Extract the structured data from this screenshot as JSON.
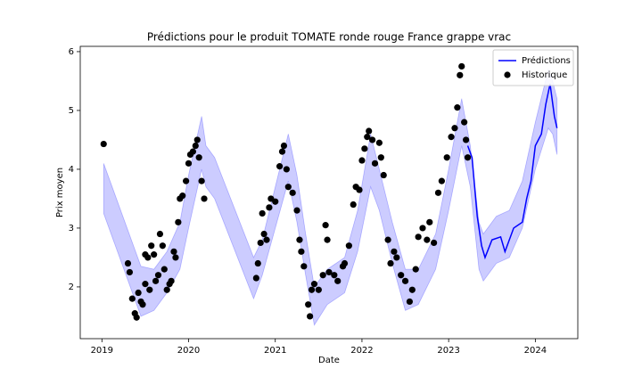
{
  "chart_data": {
    "type": "forecast",
    "title": "Prédictions pour le produit TOMATE ronde rouge France grappe vrac",
    "x_label": "Date",
    "y_label": "Prix moyen",
    "xlim": [
      2018.75,
      2024.49
    ],
    "xticks": [
      2019,
      2020,
      2021,
      2022,
      2023,
      2024
    ],
    "ylim": [
      1.12,
      6.09
    ],
    "yticks": [
      2,
      3,
      4,
      5,
      6
    ],
    "legend": "upper right",
    "interval": {
      "color": "#0000ff",
      "x": [
        2019.02,
        2019.45,
        2019.6,
        2019.75,
        2019.9,
        2020.0,
        2020.15,
        2020.2,
        2020.3,
        2020.75,
        2020.85,
        2021.0,
        2021.15,
        2021.25,
        2021.35,
        2021.45,
        2021.6,
        2021.8,
        2021.95,
        2022.1,
        2022.2,
        2022.35,
        2022.5,
        2022.65,
        2022.85,
        2023.0,
        2023.15,
        2023.25,
        2023.35,
        2023.4,
        2023.55,
        2023.7,
        2023.85,
        2024.0,
        2024.15,
        2024.2,
        2024.25
      ],
      "upper": [
        4.1,
        2.35,
        2.3,
        2.6,
        3.1,
        3.9,
        4.9,
        4.4,
        4.2,
        2.5,
        2.8,
        3.7,
        4.6,
        3.9,
        2.9,
        2.0,
        2.3,
        2.5,
        3.3,
        4.6,
        4.0,
        3.1,
        2.3,
        2.3,
        2.9,
        4.0,
        5.2,
        4.4,
        3.1,
        2.9,
        3.2,
        3.3,
        3.8,
        4.8,
        5.7,
        5.5,
        5.2
      ],
      "lower": [
        3.25,
        1.5,
        1.6,
        1.9,
        2.3,
        3.0,
        4.0,
        3.7,
        3.5,
        1.8,
        2.2,
        3.0,
        3.8,
        3.1,
        2.2,
        1.35,
        1.7,
        1.9,
        2.6,
        3.7,
        3.3,
        2.4,
        1.6,
        1.7,
        2.3,
        3.3,
        4.4,
        3.7,
        2.3,
        2.1,
        2.4,
        2.5,
        3.0,
        4.0,
        4.7,
        4.6,
        4.25
      ]
    },
    "series": [
      {
        "name": "Prédictions",
        "color": "#0000ff",
        "kind": "line",
        "x": [
          2023.22,
          2023.27,
          2023.33,
          2023.38,
          2023.42,
          2023.5,
          2023.6,
          2023.65,
          2023.75,
          2023.85,
          2023.9,
          2023.95,
          2024.0,
          2024.07,
          2024.12,
          2024.17,
          2024.22,
          2024.25
        ],
        "values": [
          4.4,
          4.2,
          3.2,
          2.7,
          2.5,
          2.8,
          2.85,
          2.6,
          3.0,
          3.1,
          3.5,
          3.8,
          4.4,
          4.6,
          5.1,
          5.45,
          4.9,
          4.7
        ]
      },
      {
        "name": "Historique",
        "color": "#000000",
        "kind": "scatter",
        "x": [
          2019.02,
          2019.3,
          2019.32,
          2019.35,
          2019.38,
          2019.4,
          2019.42,
          2019.45,
          2019.47,
          2019.5,
          2019.5,
          2019.53,
          2019.55,
          2019.57,
          2019.6,
          2019.62,
          2019.65,
          2019.67,
          2019.7,
          2019.72,
          2019.75,
          2019.78,
          2019.8,
          2019.83,
          2019.85,
          2019.88,
          2019.9,
          2019.93,
          2019.97,
          2020.0,
          2020.02,
          2020.05,
          2020.08,
          2020.1,
          2020.12,
          2020.15,
          2020.18,
          2020.78,
          2020.8,
          2020.83,
          2020.85,
          2020.87,
          2020.9,
          2020.93,
          2020.95,
          2021.0,
          2021.05,
          2021.08,
          2021.1,
          2021.13,
          2021.15,
          2021.2,
          2021.25,
          2021.28,
          2021.3,
          2021.33,
          2021.38,
          2021.4,
          2021.42,
          2021.45,
          2021.5,
          2021.55,
          2021.58,
          2021.6,
          2021.62,
          2021.68,
          2021.72,
          2021.78,
          2021.8,
          2021.85,
          2021.9,
          2021.93,
          2021.97,
          2022.0,
          2022.03,
          2022.06,
          2022.08,
          2022.12,
          2022.15,
          2022.2,
          2022.22,
          2022.25,
          2022.3,
          2022.33,
          2022.37,
          2022.4,
          2022.45,
          2022.5,
          2022.55,
          2022.58,
          2022.62,
          2022.65,
          2022.7,
          2022.75,
          2022.78,
          2022.83,
          2022.88,
          2022.92,
          2022.98,
          2023.03,
          2023.07,
          2023.1,
          2023.13,
          2023.15,
          2023.18,
          2023.2,
          2023.22
        ],
        "values": [
          4.43,
          2.4,
          2.25,
          1.8,
          1.55,
          1.48,
          1.9,
          1.75,
          1.7,
          2.05,
          2.55,
          2.5,
          1.95,
          2.7,
          2.55,
          2.1,
          2.2,
          2.9,
          2.7,
          2.3,
          1.95,
          2.05,
          2.1,
          2.6,
          2.5,
          3.1,
          3.5,
          3.55,
          3.8,
          4.1,
          4.25,
          4.3,
          4.4,
          4.5,
          4.2,
          3.8,
          3.5,
          2.15,
          2.4,
          2.75,
          3.25,
          2.9,
          2.8,
          3.35,
          3.5,
          3.45,
          4.05,
          4.3,
          4.4,
          4.0,
          3.7,
          3.6,
          3.3,
          2.8,
          2.6,
          2.35,
          1.7,
          1.5,
          1.95,
          2.05,
          1.95,
          2.2,
          3.05,
          2.8,
          2.25,
          2.2,
          2.1,
          2.35,
          2.4,
          2.7,
          3.4,
          3.7,
          3.65,
          4.15,
          4.35,
          4.55,
          4.65,
          4.5,
          4.1,
          4.45,
          4.2,
          3.9,
          2.8,
          2.4,
          2.6,
          2.5,
          2.2,
          2.1,
          1.75,
          1.95,
          2.3,
          2.85,
          3.0,
          2.8,
          3.1,
          2.75,
          3.6,
          3.8,
          4.2,
          4.55,
          4.7,
          5.05,
          5.6,
          5.75,
          4.8,
          4.5,
          4.2
        ]
      }
    ]
  }
}
